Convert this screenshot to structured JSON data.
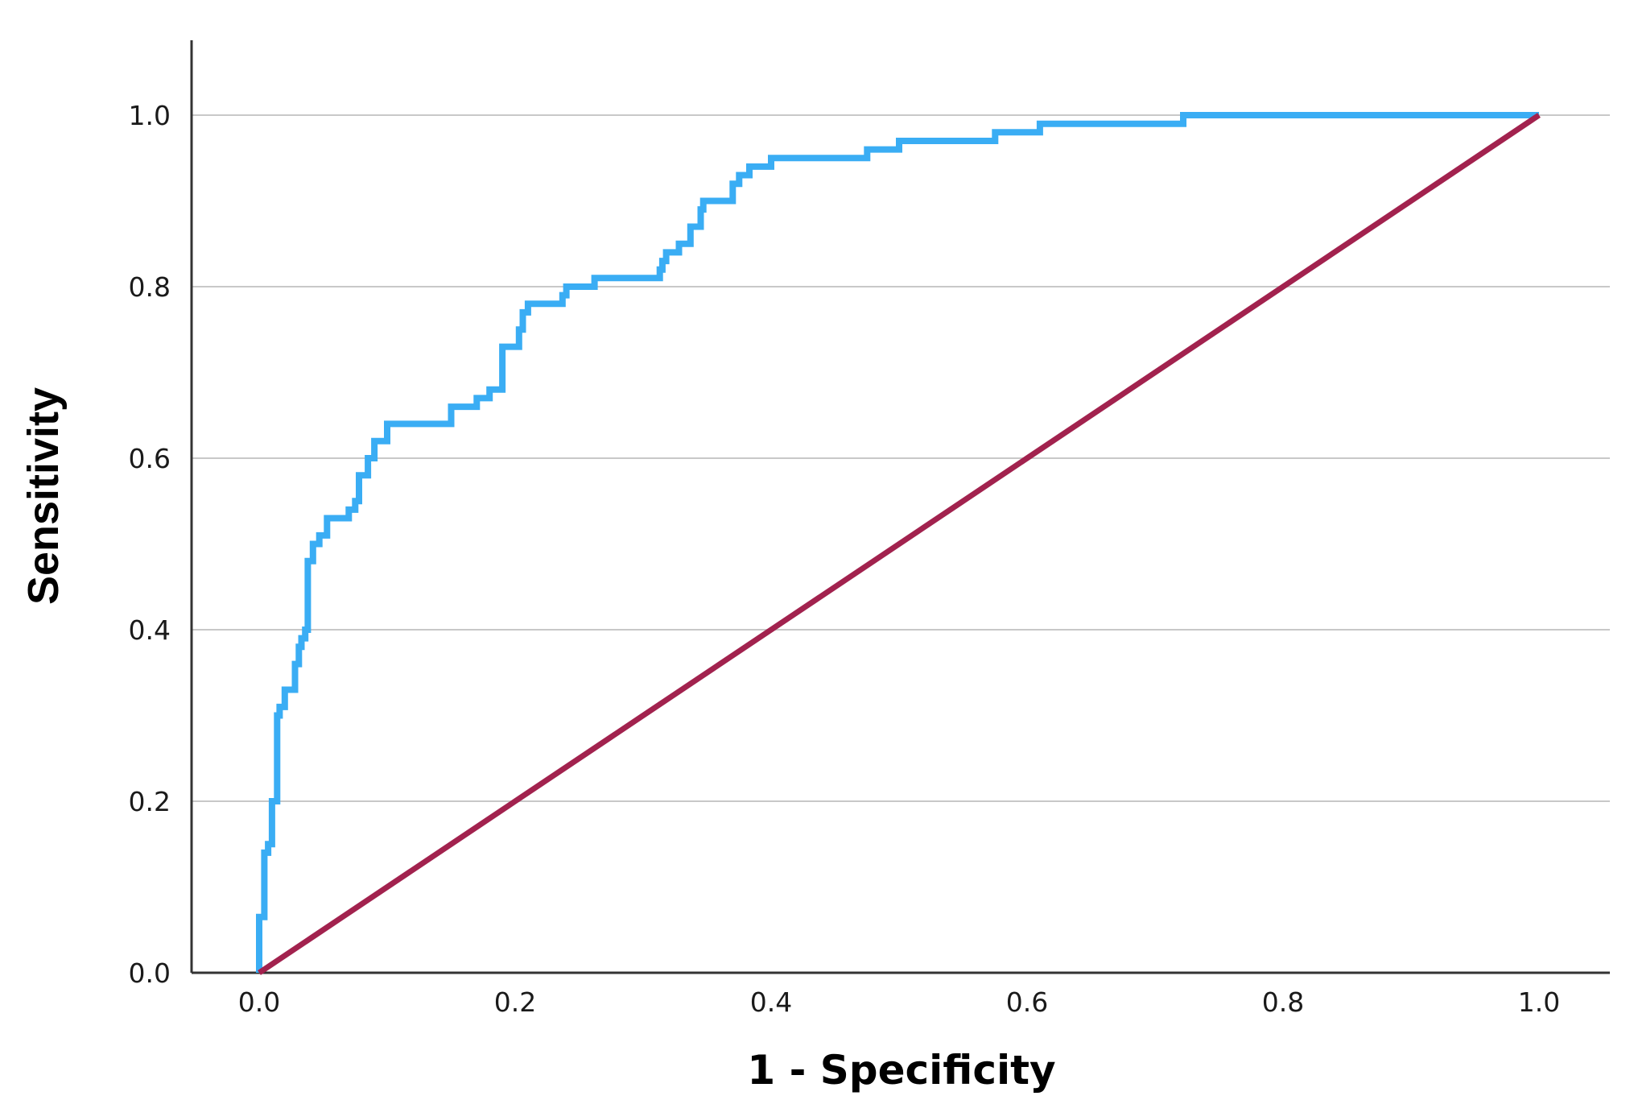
{
  "chart_data": {
    "type": "line",
    "title": "",
    "xlabel": "1 - Specificity",
    "ylabel": "Sensitivity",
    "xlim": [
      0,
      1
    ],
    "ylim": [
      0,
      1
    ],
    "x_ticks": [
      "0.0",
      "0.2",
      "0.4",
      "0.6",
      "0.8",
      "1.0"
    ],
    "y_ticks": [
      "0.0",
      "0.2",
      "0.4",
      "0.6",
      "0.8",
      "1.0"
    ],
    "grid": "horizontal",
    "legend": "none",
    "series": [
      {
        "color": "#3aadf4",
        "step": true,
        "x": [
          0.0,
          0.0,
          0.004,
          0.004,
          0.007,
          0.007,
          0.01,
          0.01,
          0.014,
          0.014,
          0.016,
          0.016,
          0.02,
          0.02,
          0.028,
          0.028,
          0.031,
          0.031,
          0.033,
          0.033,
          0.036,
          0.036,
          0.038,
          0.038,
          0.042,
          0.042,
          0.047,
          0.047,
          0.053,
          0.053,
          0.07,
          0.07,
          0.075,
          0.075,
          0.078,
          0.078,
          0.085,
          0.085,
          0.09,
          0.09,
          0.1,
          0.1,
          0.15,
          0.15,
          0.17,
          0.17,
          0.18,
          0.18,
          0.19,
          0.19,
          0.203,
          0.203,
          0.206,
          0.206,
          0.21,
          0.21,
          0.237,
          0.237,
          0.24,
          0.24,
          0.262,
          0.262,
          0.313,
          0.313,
          0.315,
          0.315,
          0.318,
          0.318,
          0.328,
          0.328,
          0.337,
          0.337,
          0.345,
          0.345,
          0.347,
          0.347,
          0.37,
          0.37,
          0.375,
          0.375,
          0.383,
          0.383,
          0.4,
          0.4,
          0.427,
          0.427,
          0.475,
          0.475,
          0.5,
          0.5,
          0.575,
          0.575,
          0.61,
          0.61,
          0.722,
          0.722,
          0.73,
          1.0
        ],
        "y": [
          0.0,
          0.065,
          0.065,
          0.14,
          0.14,
          0.15,
          0.15,
          0.2,
          0.2,
          0.3,
          0.3,
          0.31,
          0.31,
          0.33,
          0.33,
          0.36,
          0.36,
          0.38,
          0.38,
          0.39,
          0.39,
          0.4,
          0.4,
          0.48,
          0.48,
          0.5,
          0.5,
          0.51,
          0.51,
          0.53,
          0.53,
          0.54,
          0.54,
          0.55,
          0.55,
          0.58,
          0.58,
          0.6,
          0.6,
          0.62,
          0.62,
          0.64,
          0.64,
          0.66,
          0.66,
          0.67,
          0.67,
          0.68,
          0.68,
          0.73,
          0.73,
          0.75,
          0.75,
          0.77,
          0.77,
          0.78,
          0.78,
          0.79,
          0.79,
          0.8,
          0.8,
          0.81,
          0.81,
          0.82,
          0.82,
          0.83,
          0.83,
          0.84,
          0.84,
          0.85,
          0.85,
          0.87,
          0.87,
          0.89,
          0.89,
          0.9,
          0.9,
          0.92,
          0.92,
          0.93,
          0.93,
          0.94,
          0.94,
          0.95,
          0.95,
          0.95,
          0.95,
          0.96,
          0.96,
          0.97,
          0.97,
          0.98,
          0.98,
          0.99,
          0.99,
          1.0,
          1.0,
          1.0
        ]
      },
      {
        "color": "#a2224e",
        "step": false,
        "x": [
          0.0,
          1.0
        ],
        "y": [
          0.0,
          1.0
        ]
      }
    ]
  }
}
